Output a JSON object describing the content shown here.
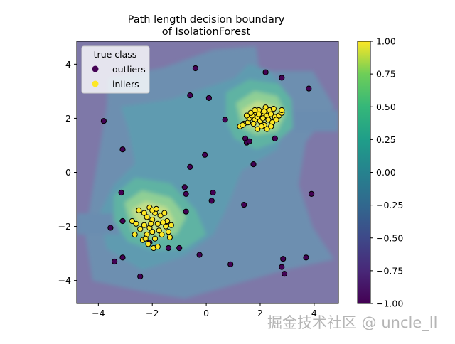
{
  "watermark": "掘金技术社区 @ uncle_ll",
  "chart_data": {
    "type": "scatter",
    "title": "Path length decision boundary\nof IsolationForest",
    "title_lines": [
      "Path length decision boundary",
      "of IsolationForest"
    ],
    "xlim": [
      -4.8,
      4.9
    ],
    "ylim": [
      -4.85,
      4.85
    ],
    "xticks": [
      -4,
      -2,
      0,
      2,
      4
    ],
    "yticks": [
      -4,
      -2,
      0,
      2,
      4
    ],
    "legend": {
      "title": "true class",
      "position": "top-left",
      "entries": [
        {
          "label": "outliers",
          "color": "#440154"
        },
        {
          "label": "inliers",
          "color": "#fde725"
        }
      ]
    },
    "colorbar": {
      "min": -1.0,
      "max": 1.0,
      "ticks": [
        "1.00",
        "0.75",
        "0.50",
        "0.25",
        "0.00",
        "−0.25",
        "−0.50",
        "−0.75",
        "−1.00"
      ],
      "tick_values": [
        1.0,
        0.75,
        0.5,
        0.25,
        0.0,
        -0.25,
        -0.5,
        -0.75,
        -1.0
      ],
      "colormap": "viridis"
    },
    "background": {
      "description_colors": [
        "#7b6fa0",
        "#6b8fad",
        "#5fb0a5",
        "#8fd195",
        "#c5e08a"
      ],
      "clusters": [
        [
          2.0,
          2.0
        ],
        [
          -2.0,
          -2.0
        ]
      ]
    },
    "series": [
      {
        "name": "outliers",
        "color": "#440154",
        "points": [
          [
            -0.4,
            3.85
          ],
          [
            2.2,
            3.7
          ],
          [
            2.8,
            3.5
          ],
          [
            3.8,
            3.1
          ],
          [
            -0.6,
            2.85
          ],
          [
            0.1,
            2.75
          ],
          [
            -3.8,
            1.9
          ],
          [
            0.7,
            1.95
          ],
          [
            1.45,
            1.25
          ],
          [
            1.5,
            1.1
          ],
          [
            1.6,
            1.15
          ],
          [
            2.55,
            1.25
          ],
          [
            -3.1,
            0.85
          ],
          [
            -0.05,
            0.65
          ],
          [
            1.75,
            0.3
          ],
          [
            -0.6,
            0.2
          ],
          [
            -0.8,
            -0.55
          ],
          [
            0.25,
            -0.75
          ],
          [
            -0.75,
            -0.8
          ],
          [
            3.9,
            -0.8
          ],
          [
            0.2,
            -1.05
          ],
          [
            1.4,
            -1.2
          ],
          [
            -0.75,
            -1.45
          ],
          [
            -3.15,
            -0.75
          ],
          [
            -3.1,
            -1.8
          ],
          [
            -3.55,
            -2.05
          ],
          [
            -1.4,
            -2.8
          ],
          [
            -1.0,
            -2.8
          ],
          [
            -0.25,
            -3.05
          ],
          [
            -3.1,
            -3.15
          ],
          [
            -3.4,
            -3.3
          ],
          [
            2.85,
            -3.2
          ],
          [
            3.7,
            -3.15
          ],
          [
            0.9,
            -3.4
          ],
          [
            2.8,
            -3.5
          ],
          [
            2.9,
            -3.75
          ],
          [
            -2.45,
            -3.85
          ],
          [
            -2.1,
            -2.6
          ]
        ]
      },
      {
        "name": "inliers",
        "color": "#fde725",
        "points": [
          [
            1.25,
            1.7
          ],
          [
            1.4,
            1.8
          ],
          [
            1.55,
            1.85
          ],
          [
            1.6,
            2.0
          ],
          [
            1.7,
            2.1
          ],
          [
            1.8,
            1.95
          ],
          [
            1.85,
            2.2
          ],
          [
            1.9,
            2.05
          ],
          [
            1.95,
            2.3
          ],
          [
            2.0,
            1.9
          ],
          [
            2.05,
            2.15
          ],
          [
            2.1,
            2.0
          ],
          [
            2.15,
            1.75
          ],
          [
            2.2,
            2.4
          ],
          [
            2.25,
            2.1
          ],
          [
            2.3,
            1.95
          ],
          [
            2.35,
            2.3
          ],
          [
            2.4,
            2.15
          ],
          [
            2.45,
            1.85
          ],
          [
            2.5,
            2.35
          ],
          [
            2.55,
            2.05
          ],
          [
            2.6,
            1.95
          ],
          [
            2.7,
            2.1
          ],
          [
            2.8,
            2.2
          ],
          [
            2.8,
            2.3
          ],
          [
            1.5,
            2.1
          ],
          [
            1.65,
            2.2
          ],
          [
            1.75,
            1.8
          ],
          [
            1.9,
            1.6
          ],
          [
            2.05,
            1.7
          ],
          [
            2.25,
            1.6
          ],
          [
            2.15,
            2.25
          ],
          [
            1.95,
            2.15
          ],
          [
            1.8,
            2.3
          ],
          [
            2.4,
            1.7
          ],
          [
            1.35,
            1.75
          ],
          [
            -2.5,
            -1.4
          ],
          [
            -2.3,
            -1.5
          ],
          [
            -2.2,
            -1.65
          ],
          [
            -2.1,
            -1.3
          ],
          [
            -2.0,
            -1.75
          ],
          [
            -1.9,
            -1.5
          ],
          [
            -1.8,
            -1.9
          ],
          [
            -1.7,
            -1.6
          ],
          [
            -1.55,
            -1.5
          ],
          [
            -1.45,
            -1.8
          ],
          [
            -2.6,
            -1.9
          ],
          [
            -2.45,
            -2.1
          ],
          [
            -2.3,
            -1.95
          ],
          [
            -2.2,
            -2.3
          ],
          [
            -2.1,
            -2.05
          ],
          [
            -2.0,
            -2.2
          ],
          [
            -1.9,
            -2.45
          ],
          [
            -1.75,
            -2.15
          ],
          [
            -1.65,
            -2.3
          ],
          [
            -1.5,
            -2.0
          ],
          [
            -1.4,
            -2.2
          ],
          [
            -2.35,
            -2.5
          ],
          [
            -2.15,
            -2.65
          ],
          [
            -1.95,
            -2.8
          ],
          [
            -1.8,
            -2.75
          ],
          [
            -2.75,
            -1.8
          ],
          [
            -2.65,
            -2.3
          ],
          [
            -1.3,
            -1.95
          ],
          [
            -1.35,
            -2.4
          ],
          [
            -2.0,
            -1.4
          ],
          [
            -1.85,
            -1.35
          ],
          [
            -2.25,
            -2.45
          ],
          [
            -1.6,
            -1.85
          ],
          [
            -2.05,
            -1.9
          ]
        ]
      }
    ]
  }
}
